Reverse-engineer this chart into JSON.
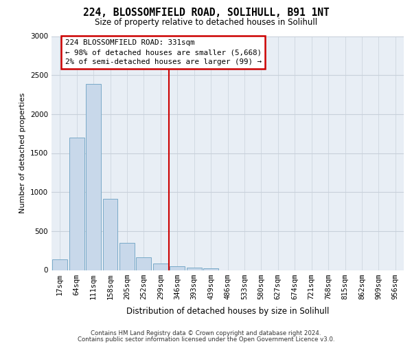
{
  "title_line1": "224, BLOSSOMFIELD ROAD, SOLIHULL, B91 1NT",
  "title_line2": "Size of property relative to detached houses in Solihull",
  "xlabel": "Distribution of detached houses by size in Solihull",
  "ylabel": "Number of detached properties",
  "footer_line1": "Contains HM Land Registry data © Crown copyright and database right 2024.",
  "footer_line2": "Contains public sector information licensed under the Open Government Licence v3.0.",
  "bin_labels": [
    "17sqm",
    "64sqm",
    "111sqm",
    "158sqm",
    "205sqm",
    "252sqm",
    "299sqm",
    "346sqm",
    "393sqm",
    "439sqm",
    "486sqm",
    "533sqm",
    "580sqm",
    "627sqm",
    "674sqm",
    "721sqm",
    "768sqm",
    "815sqm",
    "862sqm",
    "909sqm",
    "956sqm"
  ],
  "bar_values": [
    140,
    1700,
    2390,
    910,
    350,
    160,
    80,
    50,
    30,
    25,
    0,
    0,
    0,
    0,
    0,
    0,
    0,
    0,
    0,
    0,
    0
  ],
  "bar_color": "#c8d8ea",
  "bar_edge_color": "#7aaac8",
  "vline_color": "#cc0000",
  "vline_pos": 6.5,
  "annotation_title": "224 BLOSSOMFIELD ROAD: 331sqm",
  "annotation_line2": "← 98% of detached houses are smaller (5,668)",
  "annotation_line3": "2% of semi-detached houses are larger (99) →",
  "annotation_box_facecolor": "#ffffff",
  "annotation_box_edgecolor": "#cc0000",
  "ylim_max": 3000,
  "yticks": [
    0,
    500,
    1000,
    1500,
    2000,
    2500,
    3000
  ],
  "bg_color": "#ffffff",
  "plot_bg_color": "#e8eef5",
  "grid_color": "#c8d0da",
  "title1_fontsize": 10.5,
  "title2_fontsize": 8.5,
  "ylabel_fontsize": 8,
  "xlabel_fontsize": 8.5,
  "tick_fontsize": 7.5,
  "footer_fontsize": 6.2
}
